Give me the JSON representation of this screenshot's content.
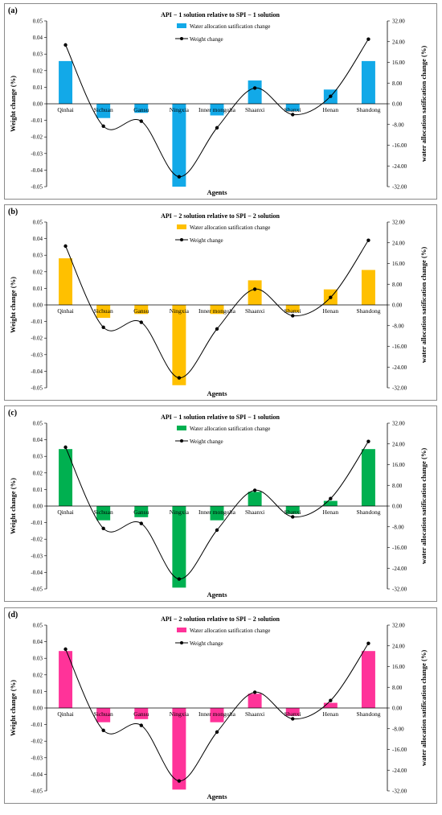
{
  "chart_data": [
    {
      "type": "bar",
      "panel_label": "(a)",
      "title": "API − 1 solution relative to SPI − 1 solution",
      "xlabel": "Agents",
      "ylabel": "Weight change (%)",
      "y2label": "water allocation satification change (%)",
      "categories": [
        "Qinhai",
        "Sichuan",
        "Gansu",
        "Ningxia",
        "Inner mongolia",
        "Shaanxi",
        "Shanxi",
        "Henan",
        "Shandong"
      ],
      "ylim": [
        -0.05,
        0.05
      ],
      "y2lim": [
        -32,
        32
      ],
      "yticks": [
        "0.05",
        "0.04",
        "0.03",
        "0.02",
        "0.01",
        "0.00",
        "-0.01",
        "-0.02",
        "-0.03",
        "-0.04",
        "-0.05"
      ],
      "y2ticks": [
        "32.00",
        "24.00",
        "16.00",
        "8.00",
        "0.00",
        "-8.00",
        "-16.00",
        "-24.00",
        "-32.00"
      ],
      "legend_position": "top-center",
      "grid": false,
      "bar_color": "#12a9e8",
      "series": [
        {
          "name": "Water allocation satification change",
          "type": "bar",
          "axis": "right",
          "values": [
            16.5,
            -5.5,
            -3.5,
            -32.0,
            -4.5,
            9.0,
            -2.8,
            5.5,
            16.5
          ]
        },
        {
          "name": "Weight change",
          "type": "line",
          "axis": "left",
          "values": [
            0.0355,
            -0.0135,
            -0.0105,
            -0.044,
            -0.0145,
            0.0095,
            -0.0065,
            0.0045,
            0.039
          ]
        }
      ]
    },
    {
      "type": "bar",
      "panel_label": "(b)",
      "title": "API − 2 solution relative to SPI − 2 solution",
      "xlabel": "Agents",
      "ylabel": "Weight change (%)",
      "y2label": "water allocation satification change (%)",
      "categories": [
        "Qinhai",
        "Sichuan",
        "Gansu",
        "Ningxia",
        "Inner mongolia",
        "Shaanxi",
        "Shanxi",
        "Henan",
        "Shandong"
      ],
      "ylim": [
        -0.05,
        0.05
      ],
      "y2lim": [
        -32,
        32
      ],
      "yticks": [
        "0.05",
        "0.04",
        "0.03",
        "0.02",
        "0.01",
        "0.00",
        "-0.01",
        "-0.02",
        "-0.03",
        "-0.04",
        "-0.05"
      ],
      "y2ticks": [
        "32.00",
        "24.00",
        "16.00",
        "8.00",
        "0.00",
        "-8.00",
        "-16.00",
        "-24.00",
        "-32.00"
      ],
      "legend_position": "top-center",
      "grid": false,
      "bar_color": "#ffc000",
      "series": [
        {
          "name": "Water allocation satification change",
          "type": "bar",
          "axis": "right",
          "values": [
            18.0,
            -5.0,
            -3.5,
            -31.0,
            -3.5,
            9.5,
            -2.8,
            6.0,
            13.5
          ]
        },
        {
          "name": "Weight change",
          "type": "line",
          "axis": "left",
          "values": [
            0.0355,
            -0.0135,
            -0.0105,
            -0.044,
            -0.0145,
            0.0095,
            -0.0065,
            0.0045,
            0.039
          ]
        }
      ]
    },
    {
      "type": "bar",
      "panel_label": "(c)",
      "title": "API − 1 solution relative to SPI − 1 solution",
      "xlabel": "Agents",
      "ylabel": "Weight change (%)",
      "y2label": "water allocation satification change (%)",
      "categories": [
        "Qinhai",
        "Sichuan",
        "Gansu",
        "Ningxia",
        "Inner mongolia",
        "Shaanxi",
        "Shanxi",
        "Henan",
        "Shandong"
      ],
      "ylim": [
        -0.05,
        0.05
      ],
      "y2lim": [
        -32,
        32
      ],
      "yticks": [
        "0.05",
        "0.04",
        "0.03",
        "0.02",
        "0.01",
        "0.00",
        "-0.01",
        "-0.02",
        "-0.03",
        "-0.04",
        "-0.05"
      ],
      "y2ticks": [
        "32.00",
        "24.00",
        "16.00",
        "8.00",
        "0.00",
        "-8.00",
        "-16.00",
        "-24.00",
        "-32.00"
      ],
      "legend_position": "top-center",
      "grid": false,
      "bar_color": "#00b050",
      "series": [
        {
          "name": "Water allocation satification change",
          "type": "bar",
          "axis": "right",
          "values": [
            22.0,
            -5.5,
            -4.3,
            -31.5,
            -5.5,
            5.5,
            -3.0,
            2.0,
            22.0
          ]
        },
        {
          "name": "Weight change",
          "type": "line",
          "axis": "left",
          "values": [
            0.0355,
            -0.0135,
            -0.0105,
            -0.044,
            -0.0145,
            0.0095,
            -0.0065,
            0.0045,
            0.039
          ]
        }
      ]
    },
    {
      "type": "bar",
      "panel_label": "(d)",
      "title": "API − 2 solution relative to SPI − 2 solution",
      "xlabel": "Agents",
      "ylabel": "Weight change (%)",
      "y2label": "water allocation satification change (%)",
      "categories": [
        "Qinhai",
        "Sichuan",
        "Gansu",
        "Ningxia",
        "Inner mongolia",
        "Shaanxi",
        "Shanxi",
        "Henan",
        "Shandong"
      ],
      "ylim": [
        -0.05,
        0.05
      ],
      "y2lim": [
        -32,
        32
      ],
      "yticks": [
        "0.05",
        "0.04",
        "0.03",
        "0.02",
        "0.01",
        "0.00",
        "-0.01",
        "-0.02",
        "-0.03",
        "-0.04",
        "-0.05"
      ],
      "y2ticks": [
        "32.00",
        "24.00",
        "16.00",
        "8.00",
        "0.00",
        "-8.00",
        "-16.00",
        "-24.00",
        "-32.00"
      ],
      "legend_position": "top-center",
      "grid": false,
      "bar_color": "#ff3399",
      "series": [
        {
          "name": "Water allocation satification change",
          "type": "bar",
          "axis": "right",
          "values": [
            22.0,
            -5.5,
            -4.3,
            -31.5,
            -5.5,
            5.5,
            -3.0,
            2.0,
            22.0
          ]
        },
        {
          "name": "Weight change",
          "type": "line",
          "axis": "left",
          "values": [
            0.0355,
            -0.0135,
            -0.0105,
            -0.044,
            -0.0145,
            0.0095,
            -0.0065,
            0.0045,
            0.039
          ]
        }
      ]
    }
  ]
}
